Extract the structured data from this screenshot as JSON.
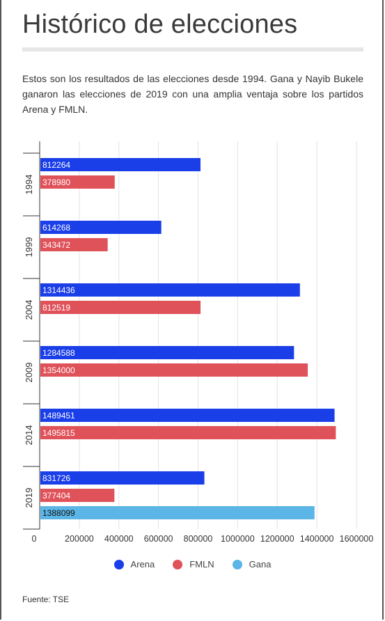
{
  "page": {
    "title": "Histórico de elecciones",
    "intro": "Estos son los resultados de las elecciones desde 1994. Gana y Nayib Bukele ganaron las elecciones de 2019 con una amplia ventaja sobre los partidos Arena y FMLN.",
    "source": "Fuente: TSE"
  },
  "legend": [
    {
      "name": "Arena",
      "color": "#1a3ee8"
    },
    {
      "name": "FMLN",
      "color": "#e0525a"
    },
    {
      "name": "Gana",
      "color": "#5bb5e6"
    }
  ],
  "chart_data": {
    "type": "bar",
    "orientation": "horizontal",
    "categories": [
      "1994",
      "1999",
      "2004",
      "2009",
      "2014",
      "2019"
    ],
    "series": [
      {
        "name": "Arena",
        "color": "#1a3ee8",
        "values": [
          812264,
          614268,
          1314436,
          1284588,
          1489451,
          831726
        ]
      },
      {
        "name": "FMLN",
        "color": "#e0525a",
        "values": [
          378980,
          343472,
          812519,
          1354000,
          1495815,
          377404
        ]
      },
      {
        "name": "Gana",
        "color": "#5bb5e6",
        "values": [
          null,
          null,
          null,
          null,
          null,
          1388099
        ]
      }
    ],
    "xticks": [
      "0",
      "200000",
      "400000",
      "600000",
      "800000",
      "1000000",
      "1200000",
      "1400000",
      "1600000"
    ],
    "xlim": [
      0,
      1600000
    ],
    "grid": true,
    "legend_position": "bottom"
  }
}
